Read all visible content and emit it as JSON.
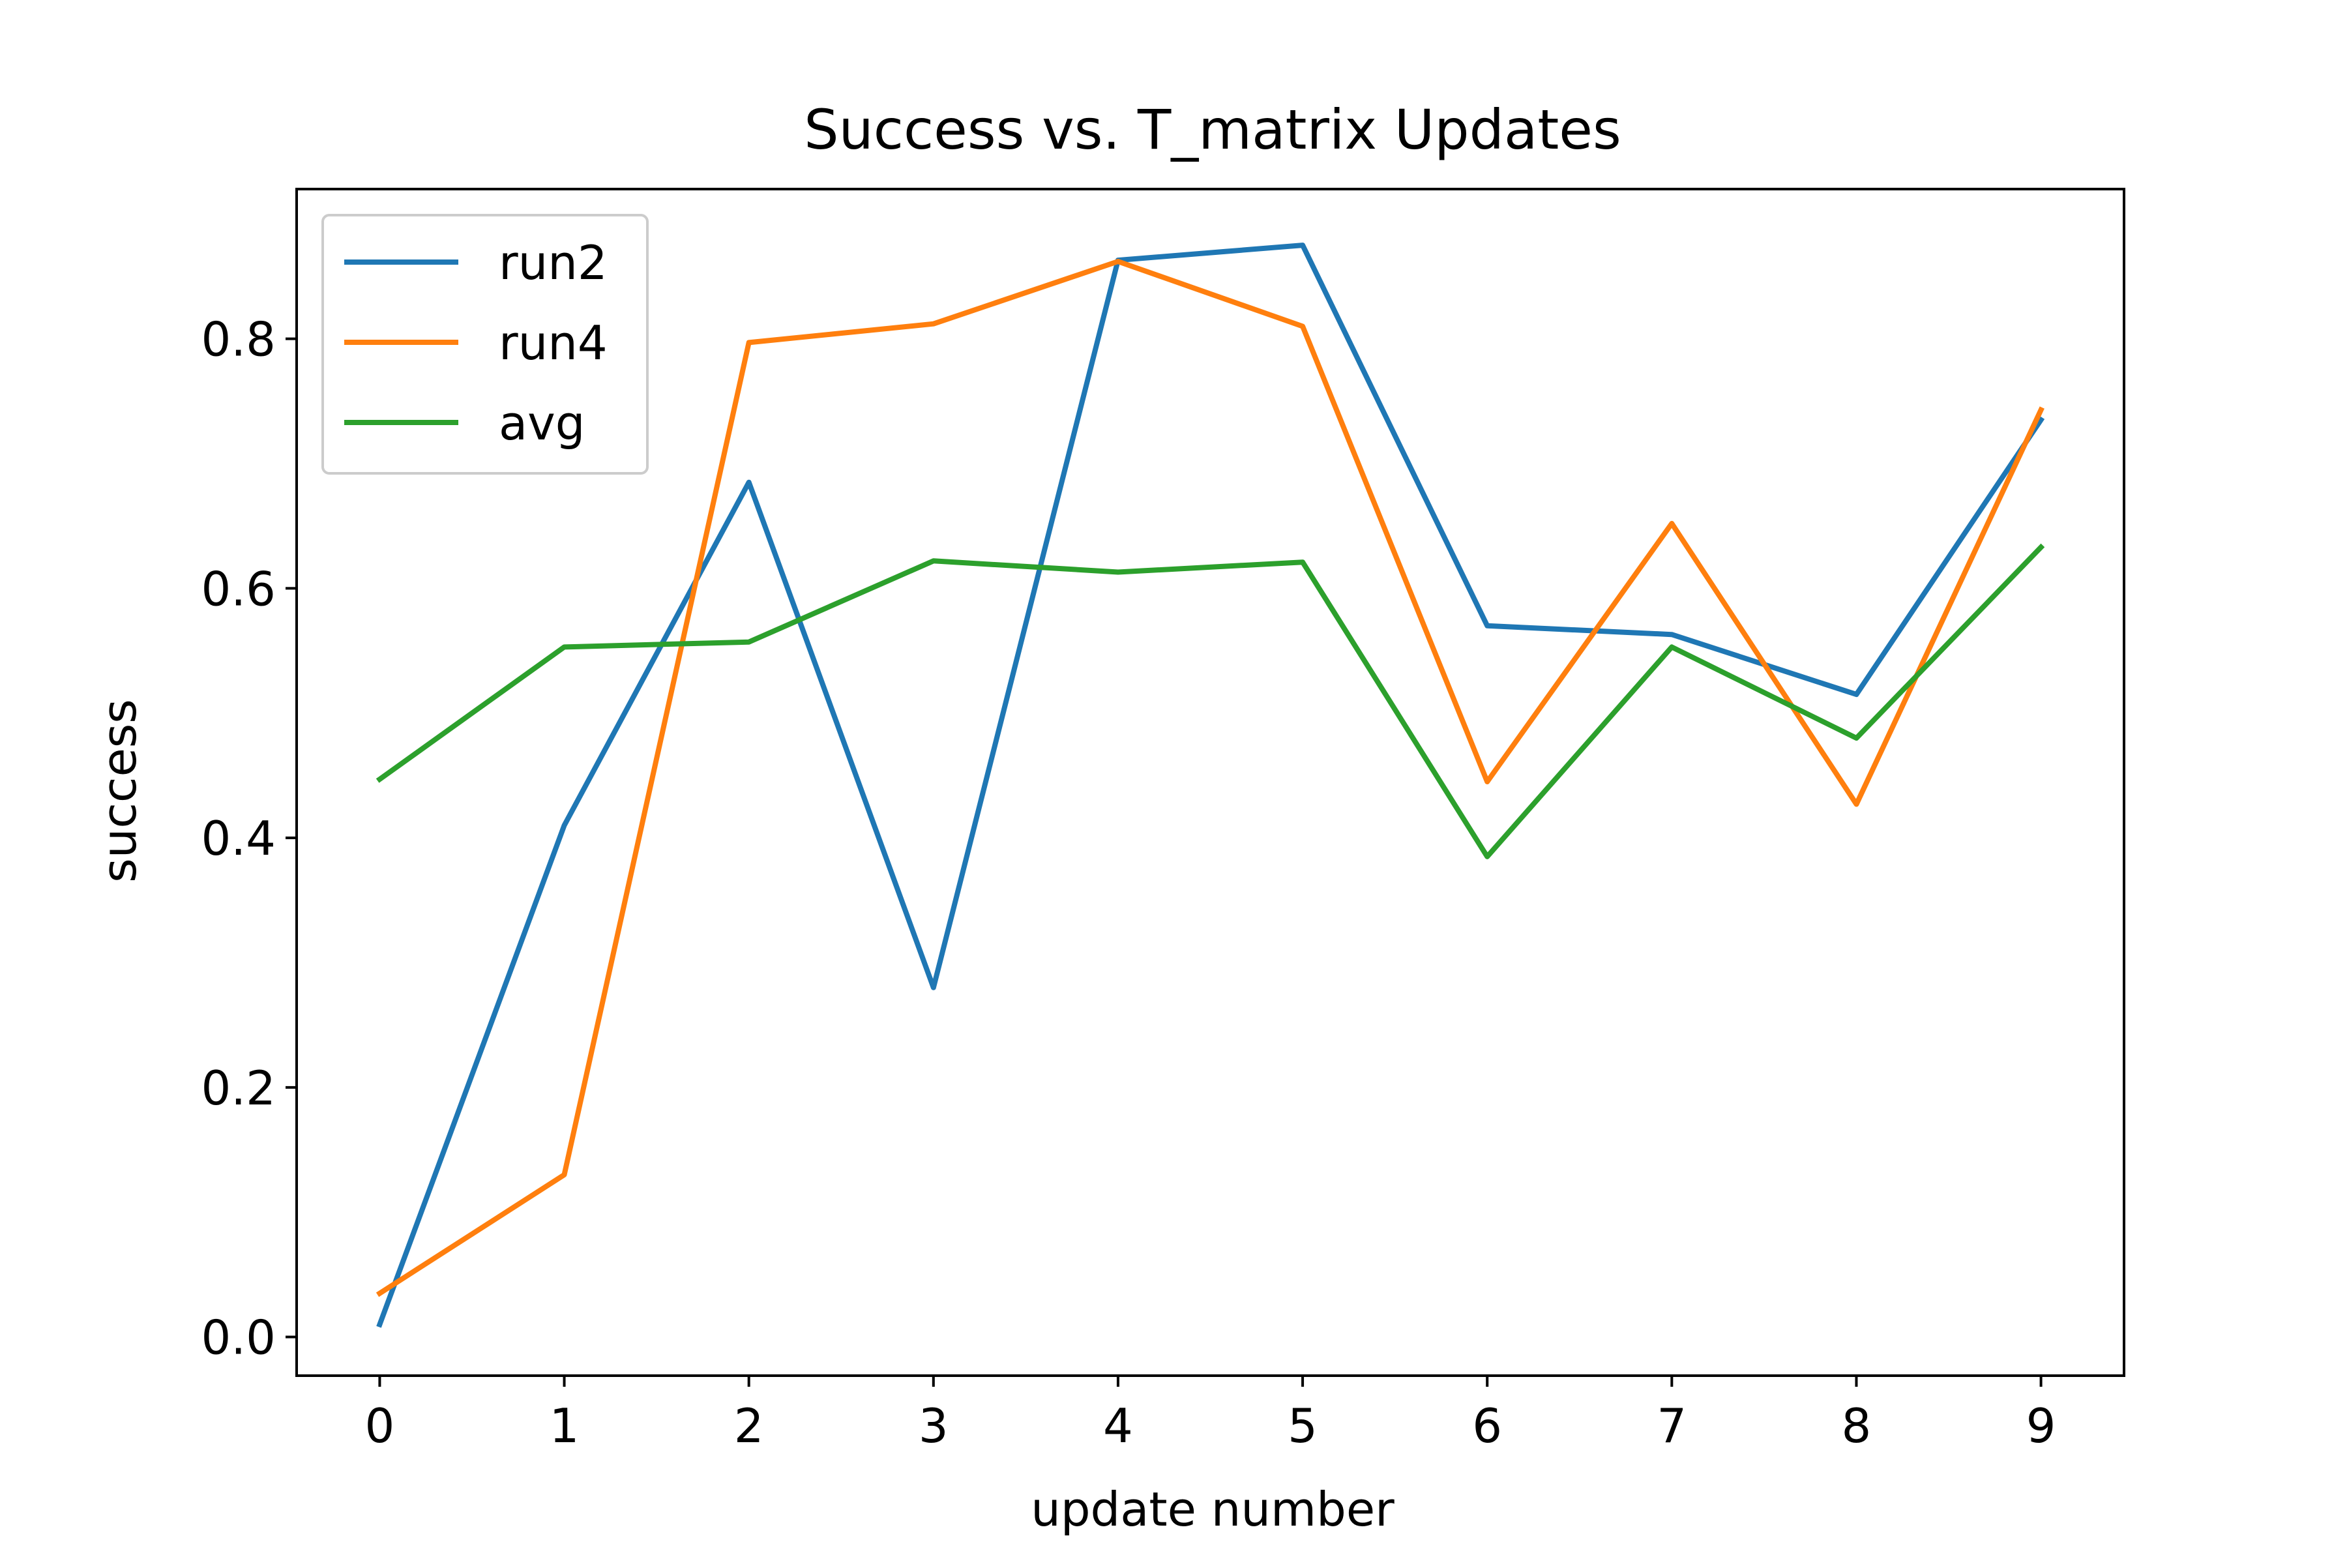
{
  "chart_data": {
    "type": "line",
    "title": "Success vs. T_matrix Updates",
    "xlabel": "update number",
    "ylabel": "success",
    "x": [
      0,
      1,
      2,
      3,
      4,
      5,
      6,
      7,
      8,
      9
    ],
    "xticks": [
      "0",
      "1",
      "2",
      "3",
      "4",
      "5",
      "6",
      "7",
      "8",
      "9"
    ],
    "yticks": [
      "0.0",
      "0.2",
      "0.4",
      "0.6",
      "0.8"
    ],
    "ytick_values": [
      0.0,
      0.2,
      0.4,
      0.6,
      0.8
    ],
    "xlim": [
      -0.45,
      9.45
    ],
    "ylim": [
      -0.031,
      0.92
    ],
    "grid": false,
    "legend_position": "upper left",
    "series": [
      {
        "name": "run2",
        "color": "#1f77b4",
        "values": [
          0.01,
          0.41,
          0.685,
          0.28,
          0.863,
          0.875,
          0.57,
          0.563,
          0.515,
          0.735
        ]
      },
      {
        "name": "run4",
        "color": "#ff7f0e",
        "values": [
          0.035,
          0.13,
          0.797,
          0.812,
          0.862,
          0.81,
          0.445,
          0.652,
          0.427,
          0.743
        ]
      },
      {
        "name": "avg",
        "color": "#2ca02c",
        "values": [
          0.447,
          0.553,
          0.557,
          0.622,
          0.613,
          0.621,
          0.385,
          0.553,
          0.48,
          0.633
        ]
      }
    ]
  }
}
